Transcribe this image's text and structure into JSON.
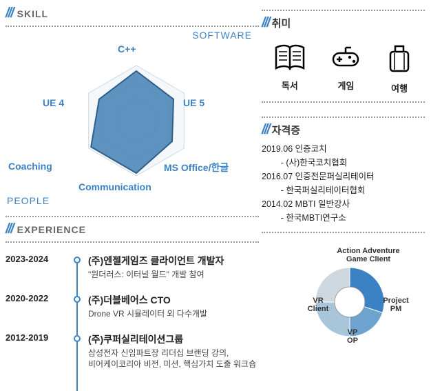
{
  "skill": {
    "heading": "SKILL",
    "software_label": "SOFTWARE",
    "people_label": "PEOPLE",
    "axes": [
      "C++",
      "UE 5",
      "MS Office/한글",
      "Communication",
      "Coaching",
      "UE 4"
    ],
    "values": [
      0.9,
      0.78,
      0.75,
      0.95,
      0.95,
      0.78
    ],
    "poly_fill": "#4f87b8",
    "poly_stroke": "#2f5e8b",
    "grid_stroke": "#cfd8df",
    "label_color": "#3b82c4",
    "hex_outer": 80
  },
  "experience": {
    "heading": "EXPERIENCE",
    "items": [
      {
        "years": "2023-2024",
        "title": "(주)엔젤게임즈 클라이언트 개발자",
        "desc": "\"원더러스: 이터널 월드\" 개발 참여"
      },
      {
        "years": "2020-2022",
        "title": "(주)더블베어스 CTO",
        "desc": "Drone VR 시뮬레이터 외 다수개발"
      },
      {
        "years": "2012-2019",
        "title": "(주)쿠퍼실리테이션그룹",
        "desc": "삼성전자 신임파트장 리더십 브랜딩 강의,\n비어케이코리아 비전, 미션, 핵심가치 도출 워크숍"
      }
    ],
    "line_color": "#3b82c4"
  },
  "hobby": {
    "heading": "취미",
    "items": [
      {
        "name": "book-icon",
        "label": "독서"
      },
      {
        "name": "gamepad-icon",
        "label": "게임"
      },
      {
        "name": "suitcase-icon",
        "label": "여행"
      }
    ]
  },
  "certs": {
    "heading": "자격증",
    "items": [
      {
        "date": "2019.06",
        "name": "인증코치",
        "issuer": "(사)한국코치협회"
      },
      {
        "date": "2016.07",
        "name": "인증전문퍼실리테이터",
        "issuer": "한국퍼실리테이터협회"
      },
      {
        "date": "2014.02",
        "name": "MBTI 일반강사",
        "issuer": "한국MBTI연구소"
      }
    ]
  },
  "pie": {
    "slices": [
      {
        "label": "Action Adventure\nGame Client",
        "value": 30,
        "color": "#3b82c4"
      },
      {
        "label": "Project\nPM",
        "value": 20,
        "color": "#6fa3cf"
      },
      {
        "label": "VP\nOP",
        "value": 25,
        "color": "#a8c5da"
      },
      {
        "label": "VR\nClient",
        "value": 25,
        "color": "#cfd8df"
      }
    ],
    "inner_radius": 22,
    "outer_radius": 50
  },
  "accent": "#3b82c4"
}
